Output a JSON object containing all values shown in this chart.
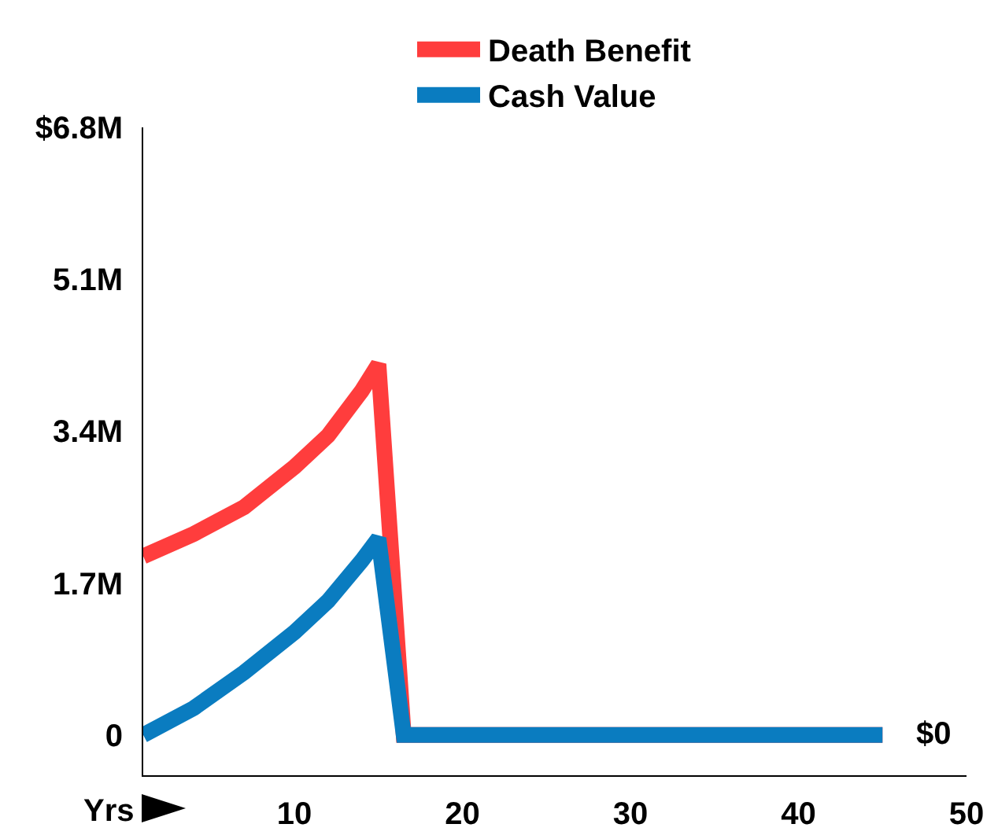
{
  "chart_data": {
    "type": "line",
    "xlabel": "Yrs",
    "x": [
      1,
      4,
      7,
      10,
      12,
      14,
      15,
      16.5,
      45
    ],
    "series": [
      {
        "name": "Death Benefit",
        "color": "#ff3d3d",
        "values": [
          2.0,
          2.25,
          2.55,
          3.0,
          3.35,
          3.85,
          4.15,
          0,
          0
        ]
      },
      {
        "name": "Cash Value",
        "color": "#0a7cc0",
        "values": [
          0,
          0.3,
          0.7,
          1.15,
          1.5,
          1.95,
          2.2,
          0,
          0
        ]
      }
    ],
    "xlim": [
      1,
      50
    ],
    "xticks": [
      10,
      20,
      30,
      40,
      50
    ],
    "ylim": [
      -0.45,
      6.8
    ],
    "yticks": [
      {
        "value": 0,
        "label": "0"
      },
      {
        "value": 1.7,
        "label": "1.7M"
      },
      {
        "value": 3.4,
        "label": "3.4M"
      },
      {
        "value": 5.1,
        "label": "5.1M"
      },
      {
        "value": 6.8,
        "label": "$6.8M"
      }
    ],
    "annotations": [
      "$0"
    ],
    "grid": false,
    "legend": "top",
    "marker": "none",
    "line_style": "solid"
  }
}
